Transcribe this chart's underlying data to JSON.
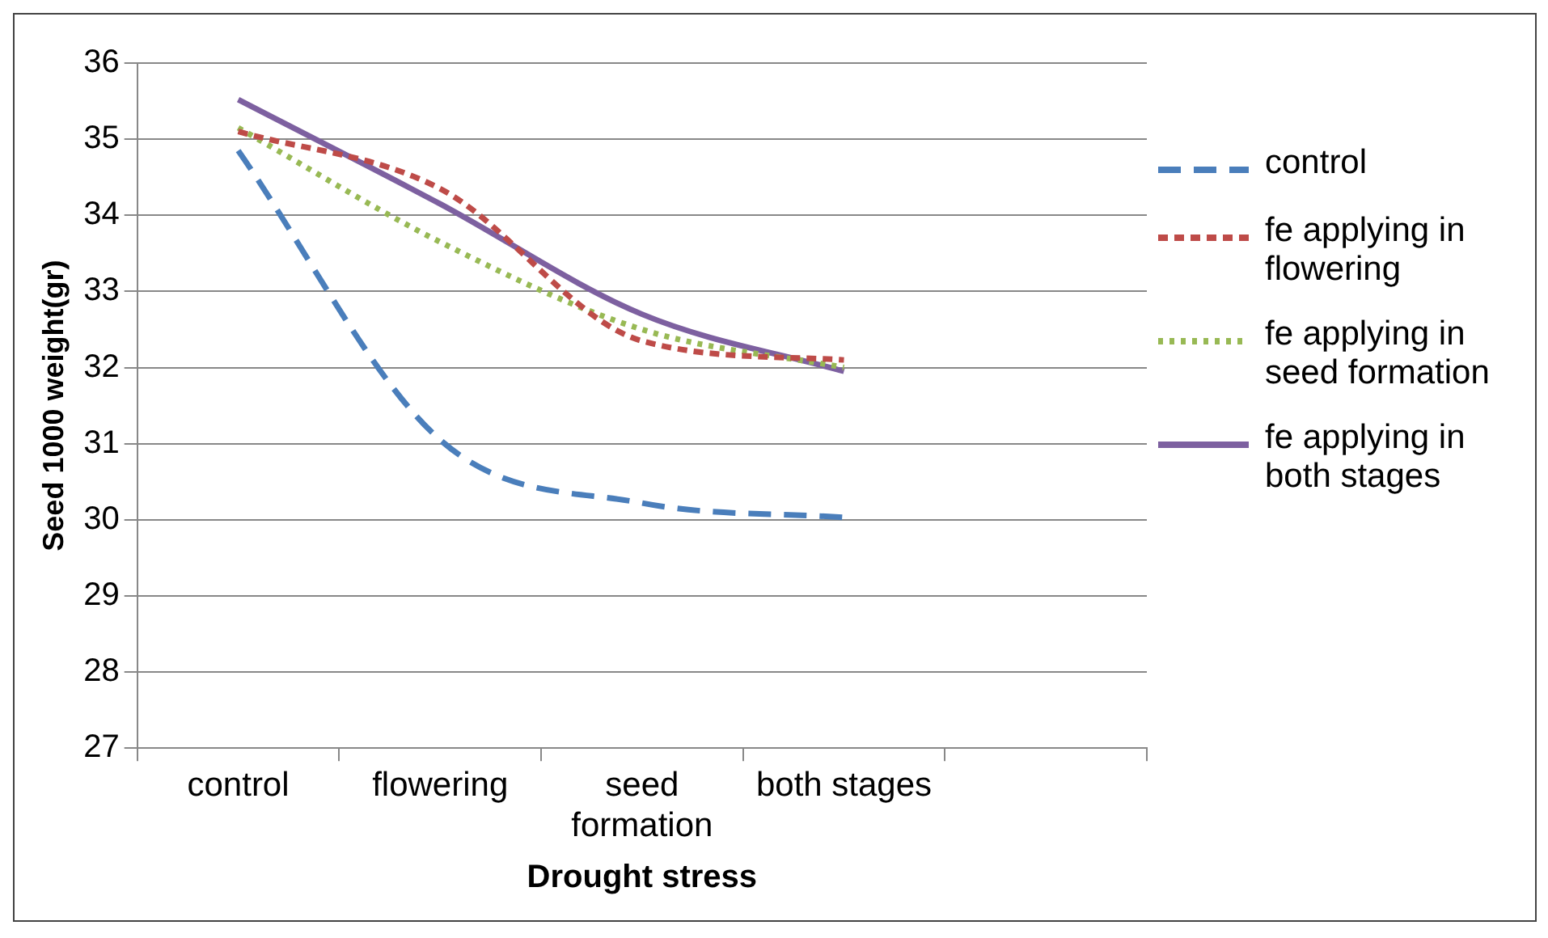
{
  "chart_data": {
    "type": "line",
    "xlabel": "Drought stress",
    "ylabel": "Seed 1000 weight(gr)",
    "categories": [
      "control",
      "flowering",
      "seed formation",
      "both stages",
      null
    ],
    "series": [
      {
        "name": "control",
        "color": "#4a7ebb",
        "line_style": "dashed",
        "values": [
          34.85,
          31.05,
          30.22,
          30.03,
          null
        ]
      },
      {
        "name": "fe applying in flowering",
        "color": "#be4b48",
        "line_style": "dashed",
        "values": [
          35.1,
          34.35,
          32.35,
          32.1,
          null
        ]
      },
      {
        "name": "fe applying in seed formation",
        "color": "#98b954",
        "line_style": "dotted",
        "values": [
          35.15,
          33.65,
          32.5,
          32.0,
          null
        ]
      },
      {
        "name": "fe applying in both stages",
        "color": "#7d60a0",
        "line_style": "solid",
        "values": [
          35.52,
          34.15,
          32.7,
          31.95,
          null
        ]
      }
    ],
    "ylim": [
      27,
      36
    ],
    "yticks": [
      27,
      28,
      29,
      30,
      31,
      32,
      33,
      34,
      35,
      36
    ],
    "grid": "y",
    "legend": "right",
    "marker": "none"
  }
}
